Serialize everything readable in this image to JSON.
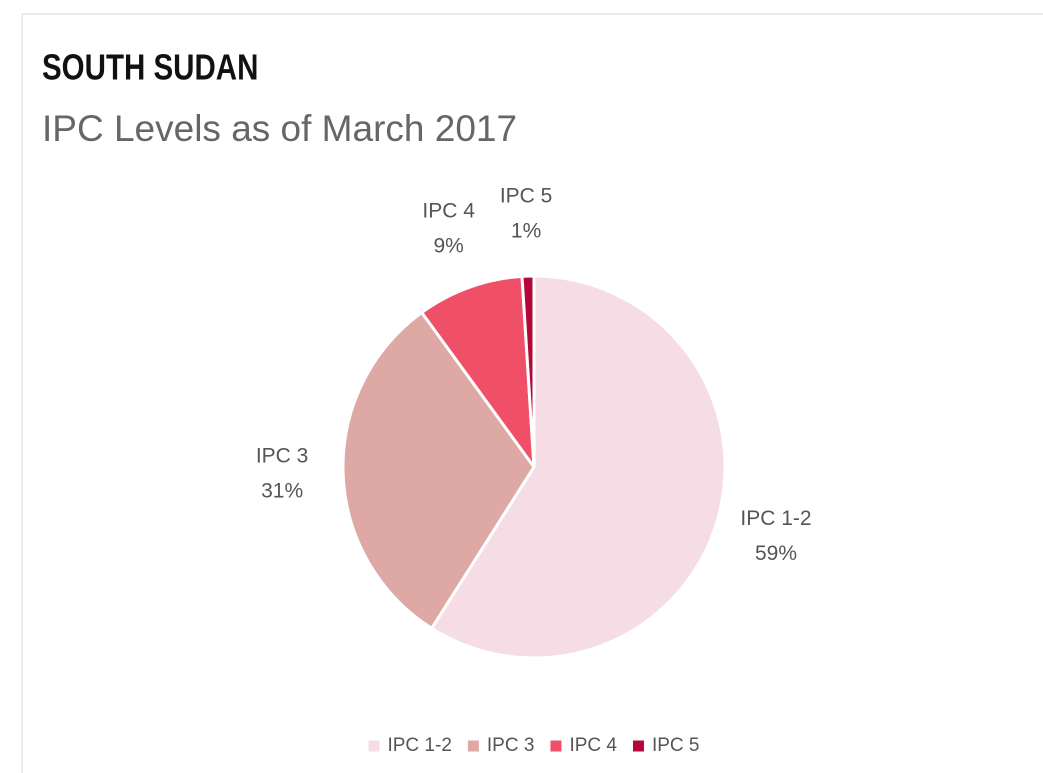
{
  "chart_data": {
    "type": "pie",
    "title": "SOUTH SUDAN",
    "subtitle": "IPC Levels as of March 2017",
    "categories": [
      "IPC 1-2",
      "IPC 3",
      "IPC 4",
      "IPC 5"
    ],
    "values": [
      59,
      31,
      9,
      1
    ],
    "value_labels": [
      "59%",
      "31%",
      "9%",
      "1%"
    ],
    "colors": [
      "#f6dde5",
      "#dea8a5",
      "#ef5068",
      "#b5073a"
    ],
    "legend": "bottom"
  }
}
